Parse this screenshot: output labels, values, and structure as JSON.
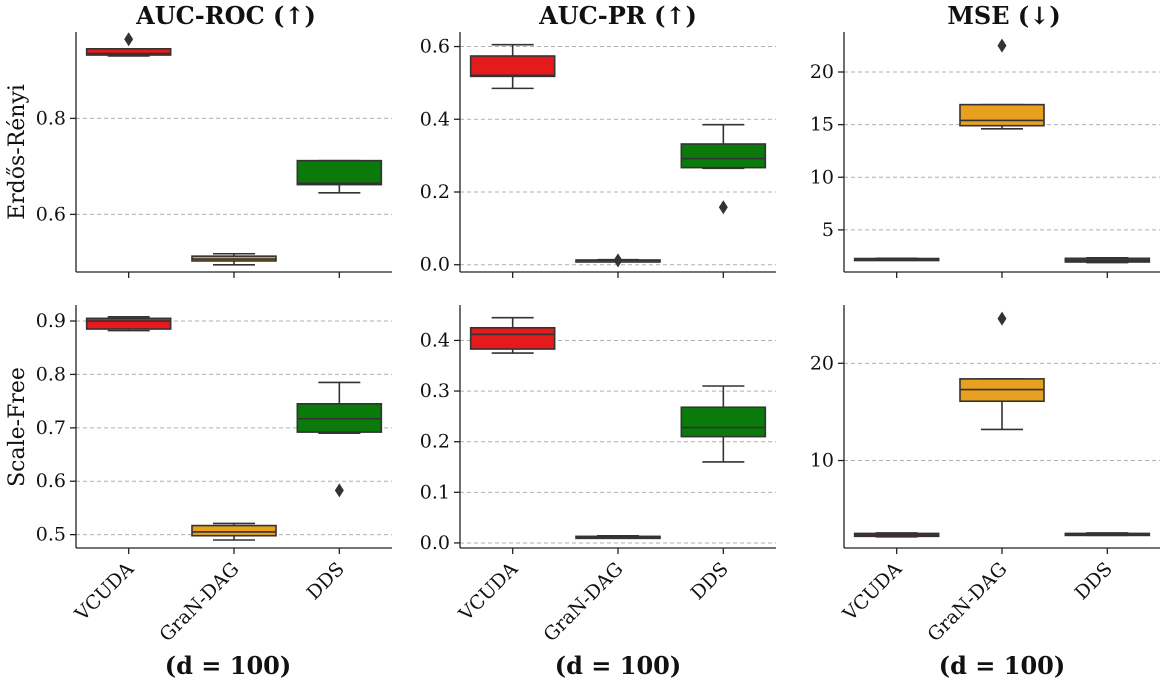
{
  "colors": {
    "VCUDA": "#e41a1c",
    "GraN-DAG": "#e8a020",
    "DDS": "#0a7a0a"
  },
  "col_titles": [
    "AUC-ROC (↑)",
    "AUC-PR (↑)",
    "MSE (↓)"
  ],
  "row_labels": [
    "Erdős-Rényi",
    "Scale-Free"
  ],
  "x_label": "(d = 100)",
  "chart_data": [
    {
      "type": "box",
      "row": "Erdős-Rényi",
      "metric": "AUC-ROC (↑)",
      "categories": [
        "VCUDA",
        "GraN-DAG",
        "DDS"
      ],
      "ylim": [
        0.48,
        0.98
      ],
      "yticks": [
        0.6,
        0.8
      ],
      "ytick_labels": [
        "0.6",
        "0.8"
      ],
      "boxes": [
        {
          "whislo": 0.93,
          "q1": 0.932,
          "med": 0.935,
          "q3": 0.945,
          "whishi": 0.945,
          "fliers": [
            0.965
          ]
        },
        {
          "whislo": 0.495,
          "q1": 0.503,
          "med": 0.507,
          "q3": 0.513,
          "whishi": 0.518,
          "fliers": []
        },
        {
          "whislo": 0.645,
          "q1": 0.662,
          "med": 0.665,
          "q3": 0.712,
          "whishi": 0.712,
          "fliers": []
        }
      ]
    },
    {
      "type": "box",
      "row": "Erdős-Rényi",
      "metric": "AUC-PR (↑)",
      "categories": [
        "VCUDA",
        "GraN-DAG",
        "DDS"
      ],
      "ylim": [
        -0.02,
        0.64
      ],
      "yticks": [
        0.0,
        0.2,
        0.4,
        0.6
      ],
      "ytick_labels": [
        "0.0",
        "0.2",
        "0.4",
        "0.6"
      ],
      "boxes": [
        {
          "whislo": 0.485,
          "q1": 0.518,
          "med": 0.521,
          "q3": 0.574,
          "whishi": 0.605,
          "fliers": []
        },
        {
          "whislo": 0.01,
          "q1": 0.011,
          "med": 0.012,
          "q3": 0.013,
          "whishi": 0.014,
          "fliers": [
            0.012
          ]
        },
        {
          "whislo": 0.265,
          "q1": 0.267,
          "med": 0.292,
          "q3": 0.332,
          "whishi": 0.385,
          "fliers": [
            0.158
          ]
        }
      ]
    },
    {
      "type": "box",
      "row": "Erdős-Rényi",
      "metric": "MSE (↓)",
      "categories": [
        "VCUDA",
        "GraN-DAG",
        "DDS"
      ],
      "ylim": [
        1.0,
        23.8
      ],
      "yticks": [
        5,
        10,
        15,
        20
      ],
      "ytick_labels": [
        "5",
        "10",
        "15",
        "20"
      ],
      "boxes": [
        {
          "whislo": 2.2,
          "q1": 2.22,
          "med": 2.25,
          "q3": 2.28,
          "whishi": 2.3,
          "fliers": []
        },
        {
          "whislo": 14.6,
          "q1": 14.9,
          "med": 15.4,
          "q3": 16.9,
          "whishi": 16.9,
          "fliers": [
            22.5
          ]
        },
        {
          "whislo": 1.9,
          "q1": 1.95,
          "med": 2.1,
          "q3": 2.3,
          "whishi": 2.35,
          "fliers": []
        }
      ]
    },
    {
      "type": "box",
      "row": "Scale-Free",
      "metric": "AUC-ROC (↑)",
      "categories": [
        "VCUDA",
        "GraN-DAG",
        "DDS"
      ],
      "ylim": [
        0.475,
        0.93
      ],
      "yticks": [
        0.5,
        0.6,
        0.7,
        0.8,
        0.9
      ],
      "ytick_labels": [
        "0.5",
        "0.6",
        "0.7",
        "0.8",
        "0.9"
      ],
      "boxes": [
        {
          "whislo": 0.882,
          "q1": 0.885,
          "med": 0.9,
          "q3": 0.905,
          "whishi": 0.908,
          "fliers": []
        },
        {
          "whislo": 0.49,
          "q1": 0.498,
          "med": 0.505,
          "q3": 0.517,
          "whishi": 0.521,
          "fliers": []
        },
        {
          "whislo": 0.69,
          "q1": 0.692,
          "med": 0.717,
          "q3": 0.745,
          "whishi": 0.785,
          "fliers": [
            0.583
          ]
        }
      ]
    },
    {
      "type": "box",
      "row": "Scale-Free",
      "metric": "AUC-PR (↑)",
      "categories": [
        "VCUDA",
        "GraN-DAG",
        "DDS"
      ],
      "ylim": [
        -0.01,
        0.47
      ],
      "yticks": [
        0.0,
        0.1,
        0.2,
        0.3,
        0.4
      ],
      "ytick_labels": [
        "0.0",
        "0.1",
        "0.2",
        "0.3",
        "0.4"
      ],
      "boxes": [
        {
          "whislo": 0.375,
          "q1": 0.383,
          "med": 0.412,
          "q3": 0.425,
          "whishi": 0.445,
          "fliers": []
        },
        {
          "whislo": 0.01,
          "q1": 0.011,
          "med": 0.012,
          "q3": 0.013,
          "whishi": 0.014,
          "fliers": []
        },
        {
          "whislo": 0.16,
          "q1": 0.21,
          "med": 0.228,
          "q3": 0.268,
          "whishi": 0.31,
          "fliers": []
        }
      ]
    },
    {
      "type": "box",
      "row": "Scale-Free",
      "metric": "MSE (↓)",
      "categories": [
        "VCUDA",
        "GraN-DAG",
        "DDS"
      ],
      "ylim": [
        1.0,
        26.0
      ],
      "yticks": [
        10,
        20
      ],
      "ytick_labels": [
        "10",
        "20"
      ],
      "boxes": [
        {
          "whislo": 2.15,
          "q1": 2.2,
          "med": 2.35,
          "q3": 2.5,
          "whishi": 2.55,
          "fliers": []
        },
        {
          "whislo": 13.2,
          "q1": 16.1,
          "med": 17.3,
          "q3": 18.4,
          "whishi": 18.4,
          "fliers": [
            24.6
          ]
        },
        {
          "whislo": 2.3,
          "q1": 2.35,
          "med": 2.45,
          "q3": 2.5,
          "whishi": 2.55,
          "fliers": []
        }
      ]
    }
  ]
}
